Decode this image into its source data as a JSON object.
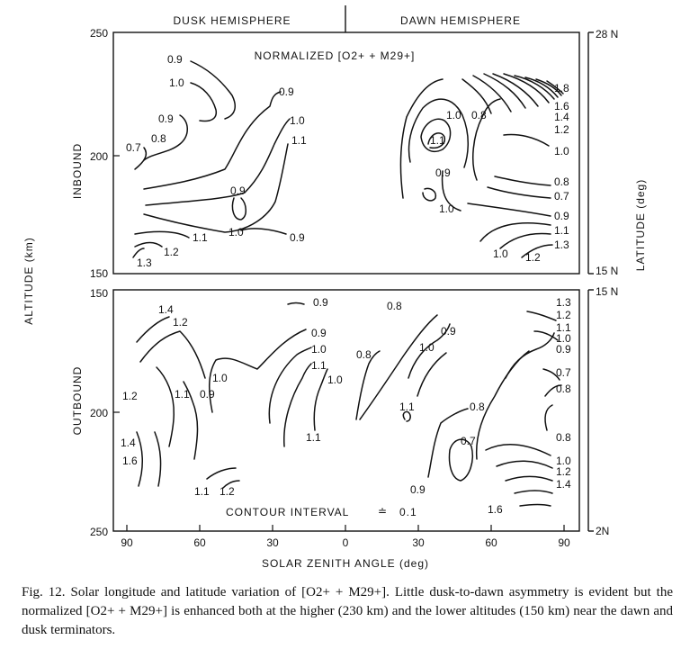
{
  "figure": {
    "hemisphere_left": "DUSK HEMISPHERE",
    "hemisphere_right": "DAWN HEMISPHERE",
    "title": "NORMALIZED [O2+ + M29+]",
    "contour_interval_label": "CONTOUR INTERVAL",
    "contour_interval_value": "0.1",
    "y_axis_title": "ALTITUDE (km)",
    "y_axis_right_title": "LATITUDE (deg)",
    "x_axis_title": "SOLAR ZENITH ANGLE (deg)",
    "inbound_label": "INBOUND",
    "outbound_label": "OUTBOUND",
    "x_ticks": [
      "90",
      "60",
      "30",
      "0",
      "30",
      "60",
      "90"
    ],
    "inbound_altitude_ticks": [
      "250",
      "200",
      "150"
    ],
    "outbound_altitude_ticks": [
      "150",
      "200",
      "250"
    ],
    "latitude_ticks": [
      "28 N",
      "15 N",
      "15 N",
      "2N"
    ],
    "inbound_contour_labels": [
      "0.9",
      "1.0",
      "0.9",
      "0.9",
      "1.0",
      "0.7",
      "0.8",
      "1.1",
      "0.9",
      "1.0",
      "1.1",
      "1.2",
      "1.3",
      "0.9",
      "1.0",
      "0.8",
      "1.1",
      "0.9",
      "1.0",
      "1.8",
      "1.6",
      "1.4",
      "1.2",
      "1.0",
      "0.8",
      "0.7",
      "0.9",
      "1.1",
      "1.3",
      "1.0",
      "1.2"
    ],
    "outbound_contour_labels": [
      "1.4",
      "1.2",
      "0.9",
      "0.9",
      "1.0",
      "1.1",
      "1.0",
      "1.0",
      "1.1",
      "0.9",
      "1.2",
      "1.4",
      "1.6",
      "1.1",
      "1.2",
      "1.1",
      "0.8",
      "0.8",
      "0.9",
      "1.0",
      "1.1",
      "0.8",
      "0.7",
      "0.9",
      "1.6",
      "1.3",
      "1.2",
      "1.1",
      "1.0",
      "0.9",
      "0.7",
      "0.8",
      "0.8",
      "1.0",
      "1.2",
      "1.4"
    ]
  },
  "caption": {
    "fig_label": "Fig. 12.",
    "text": "Solar longitude and latitude variation of [O2+ + M29+]. Little dusk-to-dawn asymmetry is evident but the normalized [O2+ + M29+] is enhanced both at the higher (230 km) and the lower altitudes (150 km) near the dawn and dusk terminators."
  }
}
